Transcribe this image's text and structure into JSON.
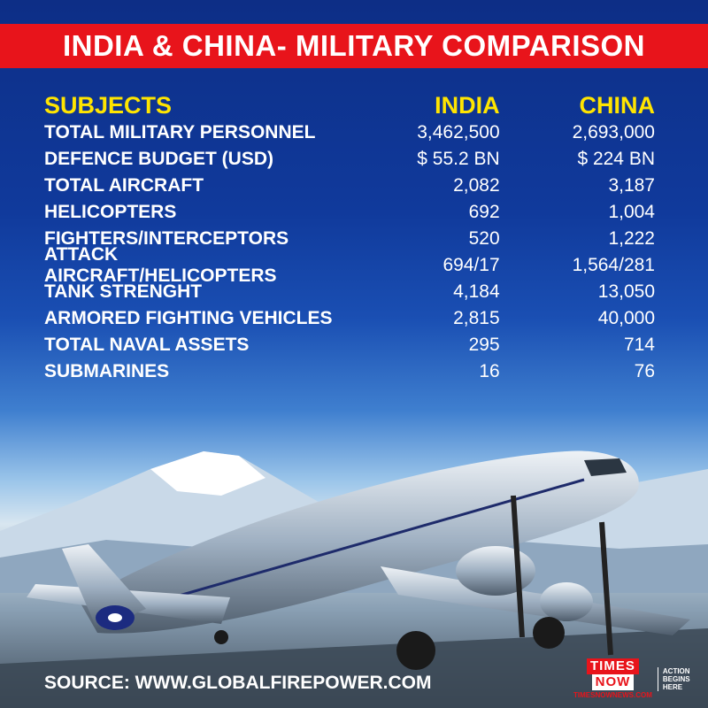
{
  "title": "INDIA & CHINA- MILITARY COMPARISON",
  "headers": {
    "subject": "SUBJECTS",
    "india": "INDIA",
    "china": "CHINA"
  },
  "rows": [
    {
      "subject": "TOTAL MILITARY PERSONNEL",
      "india": "3,462,500",
      "china": "2,693,000"
    },
    {
      "subject": "DEFENCE BUDGET (USD)",
      "india": "$ 55.2 BN",
      "china": "$ 224 BN"
    },
    {
      "subject": "TOTAL AIRCRAFT",
      "india": "2,082",
      "china": "3,187"
    },
    {
      "subject": "HELICOPTERS",
      "india": "692",
      "china": "1,004"
    },
    {
      "subject": "FIGHTERS/INTERCEPTORS",
      "india": "520",
      "china": "1,222"
    },
    {
      "subject": "ATTACK AIRCRAFT/HELICOPTERS",
      "india": "694/17",
      "china": "1,564/281"
    },
    {
      "subject": "TANK STRENGHT",
      "india": "4,184",
      "china": "13,050"
    },
    {
      "subject": "ARMORED FIGHTING VEHICLES",
      "india": "2,815",
      "china": "40,000"
    },
    {
      "subject": "TOTAL NAVAL ASSETS",
      "india": "295",
      "china": "714"
    },
    {
      "subject": "SUBMARINES",
      "india": "16",
      "china": "76"
    }
  ],
  "source": "SOURCE: WWW.GLOBALFIREPOWER.COM",
  "logo": {
    "line1": "TIMES",
    "line2": "NOW",
    "url": "TIMESNOWNEWS.COM",
    "tagline1": "ACTION",
    "tagline2": "BEGINS",
    "tagline3": "HERE"
  },
  "colors": {
    "title_bar": "#e8141b",
    "header_text": "#ffe500",
    "body_text": "#ffffff",
    "background_top": "#0d2e86"
  }
}
